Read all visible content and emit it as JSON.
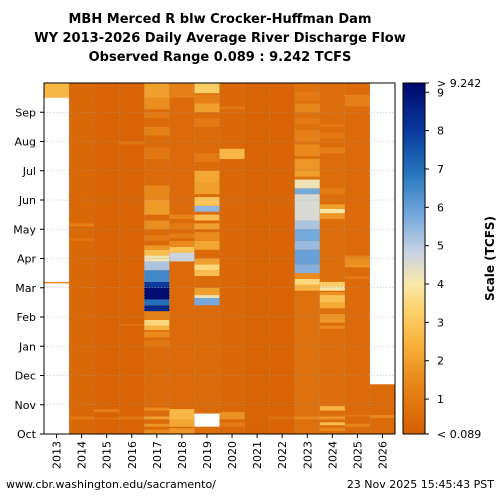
{
  "titles": {
    "line1": "MBH Merced R blw Crocker-Huffman Dam",
    "line2": "WY 2013-2026 Daily Average River Discharge Flow",
    "line3": "Observed Range 0.089 : 9.242 TCFS"
  },
  "footer": {
    "url": "www.cbr.washington.edu/sacramento/",
    "timestamp": "23 Nov 2025 15:45:43 PST"
  },
  "chart_data": {
    "type": "heatmap",
    "x_categories": [
      "2013",
      "2014",
      "2015",
      "2016",
      "2017",
      "2018",
      "2019",
      "2020",
      "2021",
      "2022",
      "2023",
      "2024",
      "2025",
      "2026"
    ],
    "y_ticks": [
      "Oct",
      "Nov",
      "Dec",
      "Jan",
      "Feb",
      "Mar",
      "Apr",
      "May",
      "Jun",
      "Jul",
      "Aug",
      "Sep"
    ],
    "colorbar": {
      "label": "Scale (TCFS)",
      "min_label": "< 0.089",
      "max_label": "> 9.242",
      "ticks": [
        1,
        2,
        3,
        4,
        5,
        6,
        7,
        8,
        9
      ],
      "range": [
        0.089,
        9.242
      ]
    },
    "grid": true,
    "no_data_color": "#ffffff",
    "base_flow_color": "#d55e00",
    "values": {
      "2013": [
        [
          0,
          11.5,
          null
        ],
        [
          11.5,
          12,
          2.6
        ],
        [
          5.15,
          5.2,
          1.5
        ]
      ],
      "2014": [
        [
          0,
          12,
          0.4
        ],
        [
          0.5,
          0.6,
          1.0
        ],
        [
          6.6,
          6.7,
          0.8
        ],
        [
          7.1,
          7.2,
          1.2
        ]
      ],
      "2015": [
        [
          0,
          12,
          0.3
        ],
        [
          0.75,
          0.85,
          1.2
        ],
        [
          0.5,
          0.55,
          0.8
        ]
      ],
      "2016": [
        [
          0,
          12,
          0.3
        ],
        [
          0.5,
          0.6,
          1.0
        ],
        [
          3.7,
          3.75,
          0.9
        ],
        [
          9.9,
          10,
          0.8
        ]
      ],
      "2017": [
        [
          0,
          12,
          0.5
        ],
        [
          0,
          0.15,
          1.5
        ],
        [
          0.25,
          0.35,
          1.8
        ],
        [
          0.5,
          0.6,
          2.0
        ],
        [
          0.8,
          0.9,
          1.5
        ],
        [
          3.0,
          3.2,
          0.9
        ],
        [
          3.3,
          3.5,
          1.5
        ],
        [
          3.55,
          3.7,
          2.5
        ],
        [
          3.7,
          3.9,
          3.5
        ],
        [
          3.9,
          4.2,
          1.2
        ],
        [
          4.2,
          4.4,
          8.5
        ],
        [
          4.4,
          4.6,
          7.0
        ],
        [
          4.6,
          5.0,
          9.2
        ],
        [
          5.0,
          5.2,
          8.0
        ],
        [
          5.2,
          5.6,
          6.5
        ],
        [
          5.6,
          5.9,
          5.2
        ],
        [
          5.9,
          6.1,
          4.2
        ],
        [
          6.1,
          6.3,
          2.8
        ],
        [
          6.3,
          6.45,
          1.8
        ],
        [
          6.6,
          6.8,
          1.0
        ],
        [
          7.0,
          7.3,
          1.6
        ],
        [
          7.5,
          8.0,
          1.9
        ],
        [
          8.0,
          8.5,
          1.4
        ],
        [
          9.4,
          9.8,
          0.9
        ],
        [
          10.2,
          10.5,
          1.2
        ],
        [
          10.8,
          11.0,
          1.0
        ],
        [
          11.1,
          11.5,
          1.6
        ],
        [
          11.5,
          12,
          2.0
        ]
      ],
      "2018": [
        [
          0,
          12,
          0.5
        ],
        [
          0,
          0.2,
          1.8
        ],
        [
          0.25,
          0.5,
          2.2
        ],
        [
          0.5,
          0.85,
          2.6
        ],
        [
          5.9,
          6.2,
          4.8
        ],
        [
          6.2,
          6.4,
          3.0
        ],
        [
          6.4,
          6.6,
          1.5
        ],
        [
          6.7,
          6.85,
          1.2
        ],
        [
          7.0,
          7.2,
          1.0
        ],
        [
          7.35,
          7.5,
          1.3
        ],
        [
          11.5,
          12,
          1.2
        ],
        [
          2.6,
          2.62,
          0.7
        ]
      ],
      "2019": [
        [
          0,
          0.25,
          0.6
        ],
        [
          0.25,
          0.7,
          null
        ],
        [
          0.7,
          12,
          0.5
        ],
        [
          4.4,
          4.65,
          5.8
        ],
        [
          4.65,
          4.75,
          4.2
        ],
        [
          4.75,
          5.0,
          2.0
        ],
        [
          5.4,
          5.6,
          2.8
        ],
        [
          5.6,
          5.8,
          3.5
        ],
        [
          5.8,
          6.0,
          2.0
        ],
        [
          6.3,
          6.6,
          2.2
        ],
        [
          6.6,
          6.9,
          1.5
        ],
        [
          7.0,
          7.2,
          2.0
        ],
        [
          7.3,
          7.5,
          2.8
        ],
        [
          7.6,
          7.8,
          5.5
        ],
        [
          7.8,
          8.1,
          3.0
        ],
        [
          8.2,
          8.6,
          2.0
        ],
        [
          8.6,
          9.0,
          2.2
        ],
        [
          9.3,
          9.6,
          1.0
        ],
        [
          10.5,
          10.8,
          1.0
        ],
        [
          11.0,
          11.3,
          2.0
        ],
        [
          11.3,
          11.6,
          1.2
        ],
        [
          11.65,
          12,
          3.2
        ]
      ],
      "2020": [
        [
          0,
          12,
          0.4
        ],
        [
          0.5,
          0.75,
          1.7
        ],
        [
          0.25,
          0.4,
          1.1
        ],
        [
          9.4,
          9.75,
          2.6
        ],
        [
          11.1,
          11.2,
          1.0
        ]
      ],
      "2021": [
        [
          0,
          12,
          0.3
        ],
        [
          0,
          0.1,
          0.2
        ]
      ],
      "2022": [
        [
          0,
          12,
          0.3
        ],
        [
          0.5,
          0.6,
          0.7
        ]
      ],
      "2023": [
        [
          0,
          12,
          0.7
        ],
        [
          0.5,
          0.6,
          1.5
        ],
        [
          4.9,
          5.1,
          2.5
        ],
        [
          5.1,
          5.3,
          3.5
        ],
        [
          5.3,
          5.5,
          1.5
        ],
        [
          5.5,
          5.8,
          5.6
        ],
        [
          5.8,
          6.3,
          6.0
        ],
        [
          6.3,
          6.6,
          5.4
        ],
        [
          6.6,
          7.0,
          5.8
        ],
        [
          7.0,
          7.3,
          5.2
        ],
        [
          7.3,
          8.2,
          4.6
        ],
        [
          8.2,
          8.4,
          5.8
        ],
        [
          8.4,
          8.7,
          4.2
        ],
        [
          8.8,
          9.0,
          2.0
        ],
        [
          9.0,
          9.4,
          1.8
        ],
        [
          9.5,
          9.9,
          1.5
        ],
        [
          10.0,
          10.4,
          1.2
        ],
        [
          10.6,
          10.8,
          1.0
        ],
        [
          11.0,
          11.3,
          1.4
        ],
        [
          11.4,
          11.7,
          1.0
        ]
      ],
      "2024": [
        [
          0,
          12,
          0.6
        ],
        [
          0.1,
          0.2,
          1.5
        ],
        [
          0.3,
          0.4,
          2.8
        ],
        [
          0.5,
          0.6,
          1.8
        ],
        [
          0.8,
          0.95,
          2.5
        ],
        [
          3.6,
          3.7,
          1.5
        ],
        [
          3.8,
          4.1,
          1.8
        ],
        [
          4.3,
          4.5,
          2.3
        ],
        [
          4.5,
          4.75,
          2.9
        ],
        [
          4.75,
          4.85,
          1.7
        ],
        [
          4.9,
          5.05,
          4.0
        ],
        [
          5.05,
          5.2,
          3.2
        ],
        [
          7.35,
          7.55,
          1.8
        ],
        [
          7.55,
          7.7,
          4.0
        ],
        [
          7.7,
          7.85,
          2.0
        ],
        [
          8.2,
          8.4,
          1.0
        ],
        [
          9.6,
          9.8,
          1.2
        ],
        [
          10.1,
          10.3,
          0.9
        ],
        [
          10.5,
          10.6,
          1.0
        ]
      ],
      "2025": [
        [
          0,
          12,
          0.5
        ],
        [
          0.25,
          0.35,
          1.3
        ],
        [
          0.6,
          0.65,
          1.0
        ],
        [
          6.0,
          6.1,
          1.3
        ],
        [
          5.3,
          5.4,
          1.0
        ],
        [
          5.7,
          5.8,
          1.8
        ],
        [
          5.8,
          6.0,
          1.6
        ],
        [
          11.2,
          11.6,
          1.2
        ]
      ],
      "2026": [
        [
          0,
          1.7,
          0.5
        ],
        [
          0.55,
          0.65,
          1.4
        ],
        [
          1.7,
          12,
          null
        ]
      ]
    }
  }
}
